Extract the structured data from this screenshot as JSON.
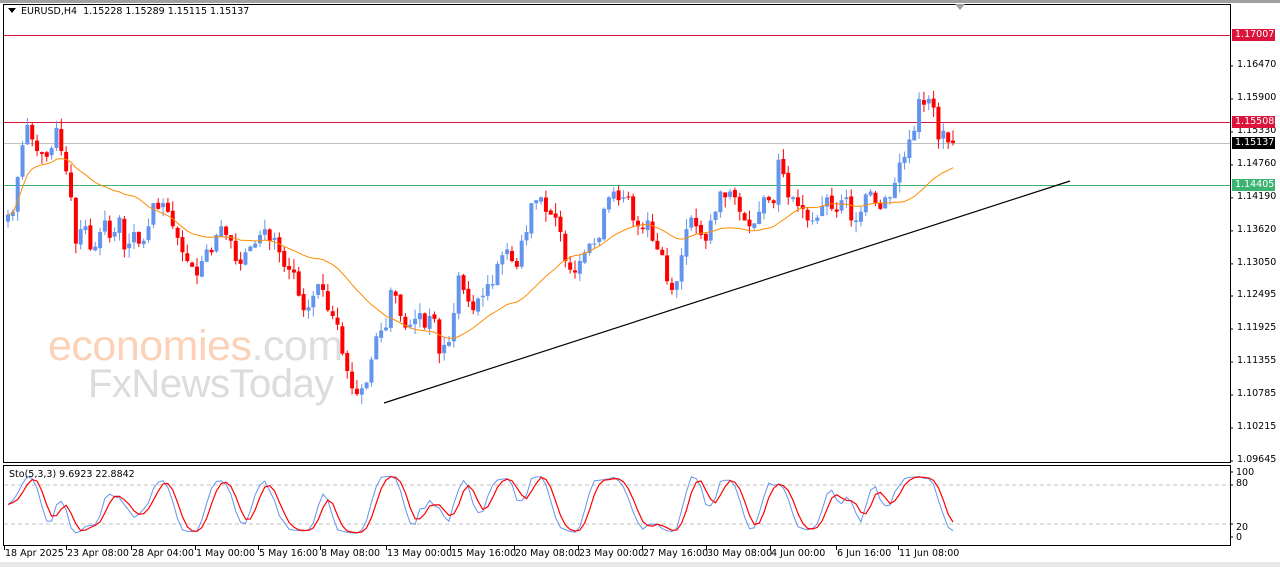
{
  "header": {
    "symbol": "EURUSD,H4",
    "ohlc": "1.15228 1.15289 1.15115 1.15137"
  },
  "stochastic": {
    "label": "Sto(5,3,3) 9.6923 22.8842",
    "levels": [
      "100",
      "80",
      "20",
      "0"
    ]
  },
  "price_axis": [
    "1.16470",
    "1.15900",
    "1.15330",
    "1.14760",
    "1.14190",
    "1.13620",
    "1.13050",
    "1.12495",
    "1.11925",
    "1.11355",
    "1.10785",
    "1.10215",
    "1.09645"
  ],
  "price_tags": {
    "resistance_2": {
      "value": "1.17007",
      "color": "#dc143c"
    },
    "resistance_1": {
      "value": "1.15508",
      "color": "#dc143c"
    },
    "current": {
      "value": "1.15137",
      "color": "#000000"
    },
    "support": {
      "value": "1.14405",
      "color": "#3cb371"
    }
  },
  "time_axis": [
    "18 Apr 2025",
    "23 Apr 08:00",
    "28 Apr 04:00",
    "1 May 00:00",
    "5 May 16:00",
    "8 May 08:00",
    "13 May 00:00",
    "15 May 16:00",
    "20 May 08:00",
    "23 May 00:00",
    "27 May 16:00",
    "30 May 08:00",
    "4 Jun 00:00",
    "6 Jun 16:00",
    "11 Jun 08:00"
  ],
  "watermark": {
    "line1_main": "economies",
    "line1_suffix": ".com",
    "line2": "FxNewsToday"
  },
  "colors": {
    "bull": "#6495ed",
    "bear": "#ff0000",
    "ma": "#ff8c00",
    "trendline": "#000000",
    "stoch_main": "#6495ed",
    "stoch_signal": "#ff0000"
  },
  "chart_data": {
    "type": "candlestick",
    "title": "EURUSD,H4",
    "timeframe": "H4",
    "last_ohlc": {
      "open": 1.15228,
      "high": 1.15289,
      "low": 1.15115,
      "close": 1.15137
    },
    "ylim": [
      1.09645,
      1.173
    ],
    "y_ticks": [
      1.1647,
      1.159,
      1.1533,
      1.1476,
      1.1419,
      1.1362,
      1.1305,
      1.12495,
      1.11925,
      1.11355,
      1.10785,
      1.10215,
      1.09645
    ],
    "x_ticks": [
      "18 Apr 2025",
      "23 Apr 08:00",
      "28 Apr 04:00",
      "1 May 00:00",
      "5 May 16:00",
      "8 May 08:00",
      "13 May 00:00",
      "15 May 16:00",
      "20 May 08:00",
      "23 May 00:00",
      "27 May 16:00",
      "30 May 08:00",
      "4 Jun 00:00",
      "6 Jun 16:00",
      "11 Jun 08:00"
    ],
    "horizontal_lines": [
      {
        "price": 1.17007,
        "color": "#dc143c",
        "role": "resistance"
      },
      {
        "price": 1.15508,
        "color": "#dc143c",
        "role": "resistance"
      },
      {
        "price": 1.15137,
        "color": "#c0c0c0",
        "role": "current price"
      },
      {
        "price": 1.14405,
        "color": "#3cb371",
        "role": "support"
      }
    ],
    "trendline": {
      "from": {
        "x_index": 71,
        "price": 1.1065
      },
      "to": {
        "x_index": 200,
        "price": 1.1445
      },
      "color": "#000000"
    },
    "closes": [
      1.139,
      1.1395,
      1.1455,
      1.151,
      1.1545,
      1.152,
      1.15,
      1.1495,
      1.149,
      1.1505,
      1.154,
      1.15,
      1.1465,
      1.142,
      1.134,
      1.1365,
      1.137,
      1.133,
      1.1335,
      1.136,
      1.138,
      1.135,
      1.136,
      1.1385,
      1.133,
      1.134,
      1.136,
      1.134,
      1.1345,
      1.137,
      1.141,
      1.14,
      1.141,
      1.1395,
      1.137,
      1.135,
      1.1325,
      1.131,
      1.13,
      1.1285,
      1.131,
      1.133,
      1.1325,
      1.1355,
      1.137,
      1.1355,
      1.1345,
      1.131,
      1.1305,
      1.1325,
      1.1335,
      1.134,
      1.1355,
      1.1365,
      1.1345,
      1.135,
      1.1325,
      1.13,
      1.1295,
      1.129,
      1.125,
      1.1225,
      1.123,
      1.125,
      1.127,
      1.126,
      1.1225,
      1.1215,
      1.12,
      1.115,
      1.112,
      1.109,
      1.108,
      1.109,
      1.11,
      1.114,
      1.118,
      1.119,
      1.1195,
      1.126,
      1.125,
      1.1215,
      1.1195,
      1.12,
      1.121,
      1.122,
      1.1195,
      1.1215,
      1.121,
      1.115,
      1.1165,
      1.117,
      1.122,
      1.1285,
      1.126,
      1.124,
      1.1225,
      1.1245,
      1.125,
      1.127,
      1.127,
      1.1305,
      1.132,
      1.133,
      1.131,
      1.13,
      1.1345,
      1.136,
      1.141,
      1.1415,
      1.142,
      1.1395,
      1.139,
      1.1385,
      1.136,
      1.131,
      1.1295,
      1.129,
      1.131,
      1.1325,
      1.134,
      1.134,
      1.135,
      1.14,
      1.142,
      1.143,
      1.1415,
      1.142,
      1.142,
      1.138,
      1.137,
      1.1365,
      1.138,
      1.1345,
      1.133,
      1.132,
      1.1275,
      1.126,
      1.1275,
      1.132,
      1.1365,
      1.1385,
      1.137,
      1.1355,
      1.1345,
      1.138,
      1.1395,
      1.143,
      1.142,
      1.143,
      1.142,
      1.1395,
      1.138,
      1.137,
      1.1375,
      1.1395,
      1.142,
      1.1415,
      1.141,
      1.1485,
      1.146,
      1.142,
      1.142,
      1.1405,
      1.14,
      1.138,
      1.138,
      1.1385,
      1.1405,
      1.142,
      1.14,
      1.1395,
      1.1415,
      1.142,
      1.138,
      1.138,
      1.1395,
      1.1425,
      1.143,
      1.141,
      1.14,
      1.142,
      1.142,
      1.1445,
      1.148,
      1.149,
      1.152,
      1.1535,
      1.159,
      1.158,
      1.159,
      1.1575,
      1.152,
      1.1535,
      1.1515,
      1.1514
    ],
    "ma_color": "#ff8c00",
    "indicator": {
      "name": "Stochastic",
      "params": "5,3,3",
      "main_value": 9.6923,
      "signal_value": 22.8842,
      "levels": [
        20,
        80
      ],
      "range": [
        0,
        100
      ]
    }
  }
}
